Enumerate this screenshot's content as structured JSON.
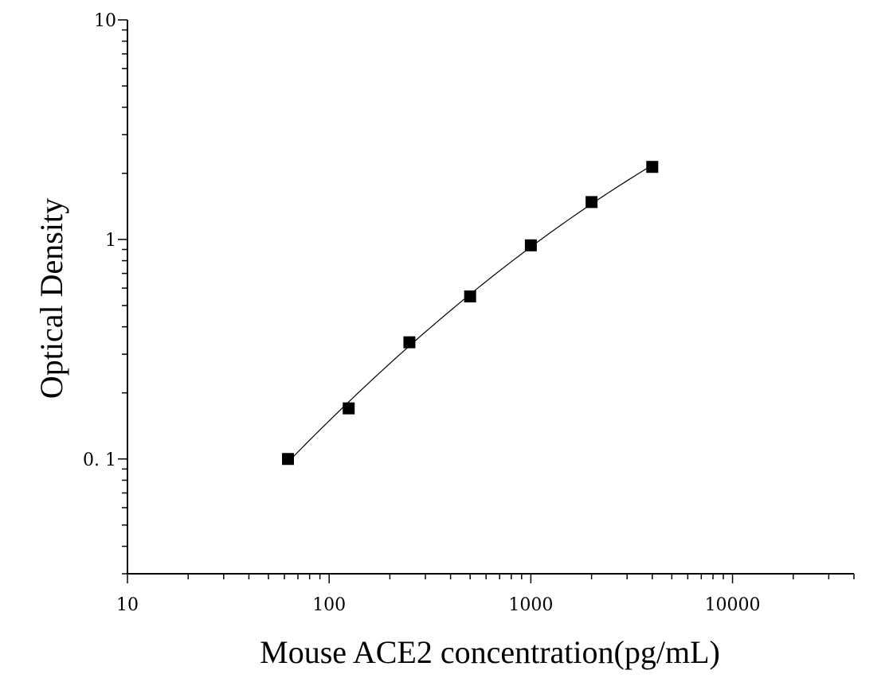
{
  "chart_data": {
    "type": "scatter",
    "title": "",
    "xlabel": "Mouse ACE2 concentration(pg/mL)",
    "ylabel": "Optical Density",
    "x_scale": "log",
    "y_scale": "log",
    "xlim": [
      10,
      40000
    ],
    "ylim": [
      0.03,
      10
    ],
    "x_ticks": [
      {
        "value": 10,
        "label": "10"
      },
      {
        "value": 100,
        "label": "100"
      },
      {
        "value": 1000,
        "label": "1000"
      },
      {
        "value": 10000,
        "label": "10000"
      }
    ],
    "y_ticks": [
      {
        "value": 0.1,
        "label": "0. 1"
      },
      {
        "value": 1,
        "label": "1"
      },
      {
        "value": 10,
        "label": "10"
      }
    ],
    "grid": false,
    "series": [
      {
        "x": [
          62.5,
          125,
          250,
          500,
          1000,
          2000,
          4000
        ],
        "y": [
          0.1,
          0.17,
          0.34,
          0.55,
          0.94,
          1.48,
          2.14
        ],
        "marker": "square",
        "fit_line": true
      }
    ],
    "colors": {
      "marker": "#000000",
      "line": "#000000",
      "axis": "#000000"
    }
  }
}
